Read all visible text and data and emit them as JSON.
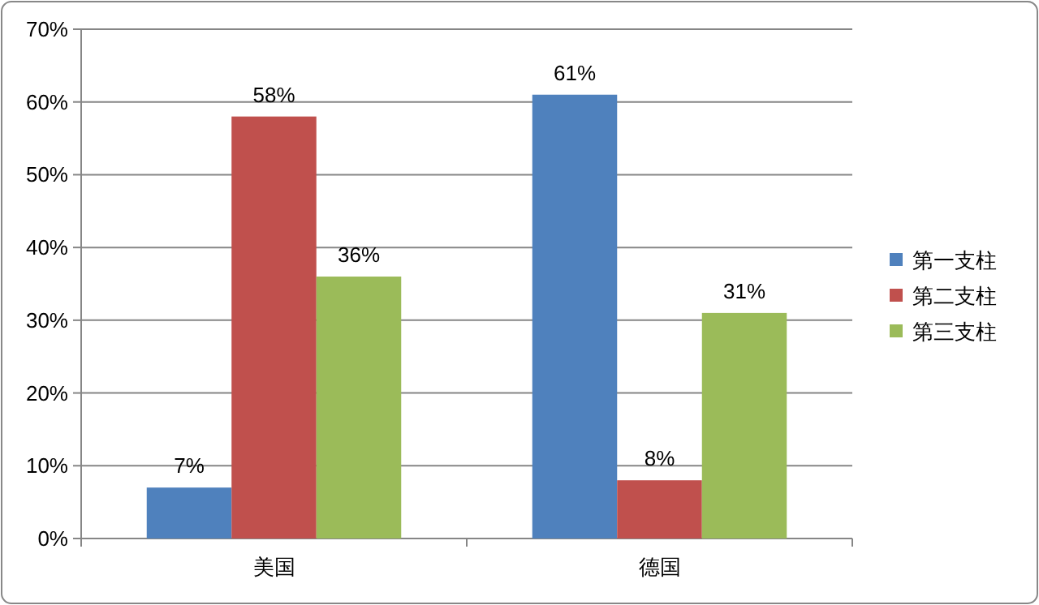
{
  "chart_data": {
    "type": "bar",
    "categories": [
      "美国",
      "德国"
    ],
    "series": [
      {
        "name": "第一支柱",
        "color": "#4f81bd",
        "values": [
          7,
          61
        ],
        "value_labels": [
          "7%",
          "61%"
        ]
      },
      {
        "name": "第二支柱",
        "color": "#c0504d",
        "values": [
          58,
          8
        ],
        "value_labels": [
          "58%",
          "8%"
        ]
      },
      {
        "name": "第三支柱",
        "color": "#9bbb59",
        "values": [
          36,
          31
        ],
        "value_labels": [
          "36%",
          "31%"
        ]
      }
    ],
    "ylim": [
      0,
      70
    ],
    "yticks": [
      {
        "value": 0,
        "label": "0%"
      },
      {
        "value": 10,
        "label": "10%"
      },
      {
        "value": 20,
        "label": "20%"
      },
      {
        "value": 30,
        "label": "30%"
      },
      {
        "value": 40,
        "label": "40%"
      },
      {
        "value": 50,
        "label": "50%"
      },
      {
        "value": 60,
        "label": "60%"
      },
      {
        "value": 70,
        "label": "70%"
      }
    ],
    "grid": "y",
    "legend": "right"
  }
}
